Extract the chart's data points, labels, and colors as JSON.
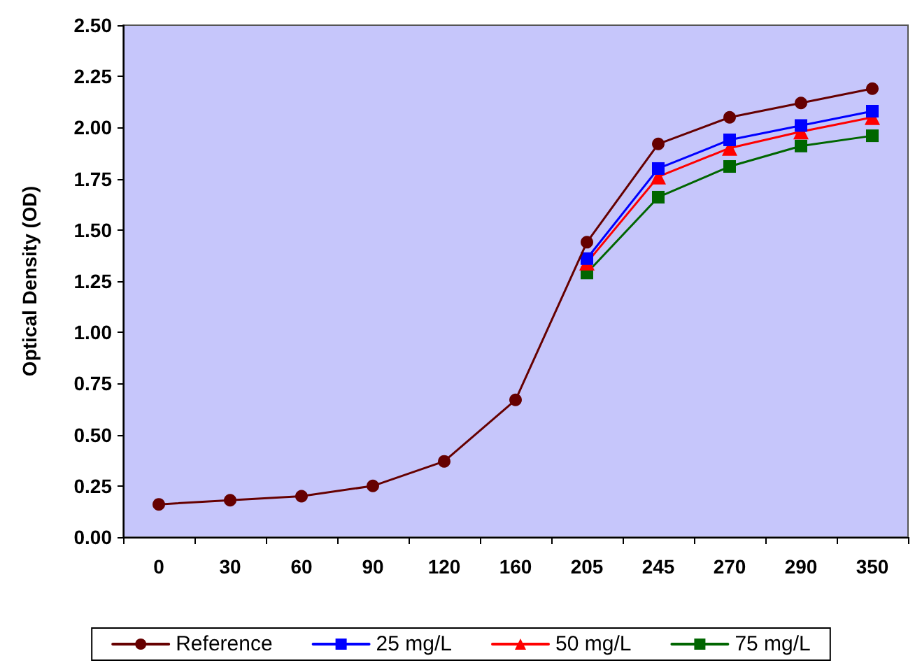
{
  "chart_data": {
    "type": "line",
    "ylabel": "Optical Density (OD)",
    "categories": [
      "0",
      "30",
      "60",
      "90",
      "120",
      "160",
      "205",
      "245",
      "270",
      "290",
      "350"
    ],
    "series": [
      {
        "name": "Reference",
        "color": "#660000",
        "marker": "circle",
        "values": [
          0.16,
          0.18,
          0.2,
          0.25,
          0.37,
          0.67,
          1.44,
          1.92,
          2.05,
          2.12,
          2.19
        ]
      },
      {
        "name": "25 mg/L",
        "color": "#0000ff",
        "marker": "square",
        "values": [
          null,
          null,
          null,
          null,
          null,
          null,
          1.36,
          1.8,
          1.94,
          2.01,
          2.08
        ]
      },
      {
        "name": "50 mg/L",
        "color": "#ff0000",
        "marker": "triangle",
        "values": [
          null,
          null,
          null,
          null,
          null,
          null,
          1.34,
          1.76,
          1.9,
          1.98,
          2.05
        ]
      },
      {
        "name": "75 mg/L",
        "color": "#006600",
        "marker": "square",
        "values": [
          null,
          null,
          null,
          null,
          null,
          null,
          1.29,
          1.66,
          1.81,
          1.91,
          1.96
        ]
      }
    ],
    "ylim": [
      0,
      2.5
    ],
    "yticks": [
      {
        "value": 0,
        "label": "0.00"
      },
      0.25,
      {
        "value": 0.5,
        "label": "0.50"
      },
      0.75,
      {
        "value": 1,
        "label": "1.00"
      },
      1.25,
      {
        "value": 1.5,
        "label": "1.50"
      },
      1.75,
      {
        "value": 2,
        "label": "2.00"
      },
      2.25,
      {
        "value": 2.5,
        "label": "2.50"
      }
    ],
    "grid": false,
    "legend": "bottom"
  }
}
